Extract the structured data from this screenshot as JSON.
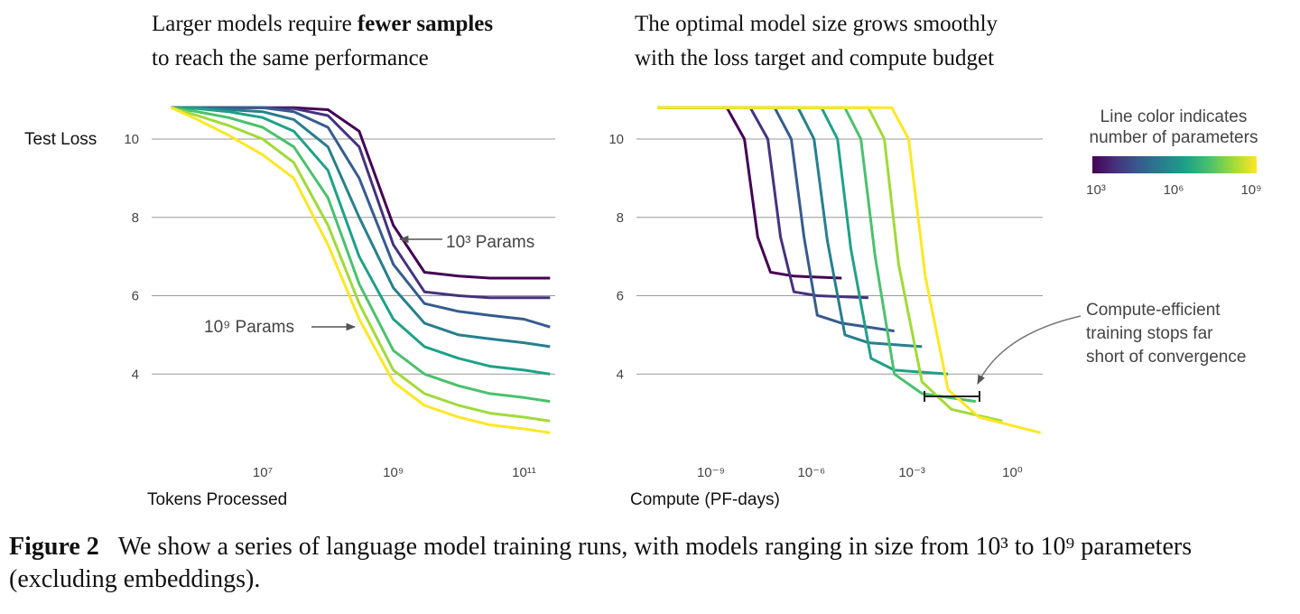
{
  "chart_data": [
    {
      "type": "line",
      "title": {
        "line1": "Larger models require ",
        "bold": "fewer samples",
        "line2": "to reach the same performance"
      },
      "ylabel": "Test Loss",
      "xlabel": "Tokens Processed",
      "xscale": "log",
      "grid": true,
      "xlim": [
        200000,
        300000000000
      ],
      "ylim": [
        2,
        11.2
      ],
      "xticks": [
        {
          "value": 10000000,
          "label": "10⁷"
        },
        {
          "value": 1000000000,
          "label": "10⁹"
        },
        {
          "value": 100000000000,
          "label": "10¹¹"
        }
      ],
      "yticks": [
        10,
        8,
        6,
        4
      ],
      "annotations": [
        "10³ Params",
        "10⁹ Params"
      ],
      "series": [
        {
          "color": "#440154",
          "x": [
            400000,
            1000000,
            3000000,
            10000000,
            30000000,
            100000000,
            300000000,
            1000000000,
            3000000000,
            10000000000,
            30000000000,
            100000000000,
            250000000000
          ],
          "values": [
            10.8,
            10.8,
            10.8,
            10.8,
            10.8,
            10.75,
            10.2,
            7.8,
            6.6,
            6.5,
            6.45,
            6.45,
            6.45
          ]
        },
        {
          "color": "#46327e",
          "x": [
            400000,
            1000000,
            3000000,
            10000000,
            30000000,
            100000000,
            300000000,
            1000000000,
            3000000000,
            10000000000,
            30000000000,
            100000000000,
            250000000000
          ],
          "values": [
            10.8,
            10.8,
            10.8,
            10.8,
            10.78,
            10.6,
            9.8,
            7.3,
            6.1,
            6.0,
            5.95,
            5.95,
            5.95
          ]
        },
        {
          "color": "#365c8d",
          "x": [
            400000,
            1000000,
            3000000,
            10000000,
            30000000,
            100000000,
            300000000,
            1000000000,
            3000000000,
            10000000000,
            30000000000,
            100000000000,
            250000000000
          ],
          "values": [
            10.8,
            10.8,
            10.8,
            10.8,
            10.7,
            10.3,
            9.0,
            6.8,
            5.8,
            5.6,
            5.5,
            5.4,
            5.2
          ]
        },
        {
          "color": "#277f8e",
          "x": [
            400000,
            1000000,
            3000000,
            10000000,
            30000000,
            100000000,
            300000000,
            1000000000,
            3000000000,
            10000000000,
            30000000000,
            100000000000,
            250000000000
          ],
          "values": [
            10.8,
            10.8,
            10.75,
            10.7,
            10.5,
            9.8,
            8.0,
            6.2,
            5.3,
            5.0,
            4.9,
            4.8,
            4.7
          ]
        },
        {
          "color": "#1fa187",
          "x": [
            400000,
            1000000,
            3000000,
            10000000,
            30000000,
            100000000,
            300000000,
            1000000000,
            3000000000,
            10000000000,
            30000000000,
            100000000000,
            250000000000
          ],
          "values": [
            10.8,
            10.78,
            10.7,
            10.55,
            10.2,
            9.2,
            7.0,
            5.4,
            4.7,
            4.4,
            4.2,
            4.1,
            4.0
          ]
        },
        {
          "color": "#4ac16d",
          "x": [
            400000,
            1000000,
            3000000,
            10000000,
            30000000,
            100000000,
            300000000,
            1000000000,
            3000000000,
            10000000000,
            30000000000,
            100000000000,
            250000000000
          ],
          "values": [
            10.8,
            10.7,
            10.55,
            10.3,
            9.8,
            8.5,
            6.3,
            4.6,
            4.0,
            3.7,
            3.5,
            3.4,
            3.3
          ]
        },
        {
          "color": "#a0da39",
          "x": [
            400000,
            1000000,
            3000000,
            10000000,
            30000000,
            100000000,
            300000000,
            1000000000,
            3000000000,
            10000000000,
            30000000000,
            100000000000,
            250000000000
          ],
          "values": [
            10.8,
            10.6,
            10.35,
            10.0,
            9.4,
            7.8,
            5.8,
            4.1,
            3.5,
            3.2,
            3.0,
            2.9,
            2.8
          ]
        },
        {
          "color": "#fde725",
          "x": [
            400000,
            1000000,
            3000000,
            10000000,
            30000000,
            100000000,
            300000000,
            1000000000,
            3000000000,
            10000000000,
            30000000000,
            100000000000,
            250000000000
          ],
          "values": [
            10.8,
            10.5,
            10.1,
            9.6,
            9.0,
            7.3,
            5.4,
            3.8,
            3.2,
            2.9,
            2.7,
            2.6,
            2.5
          ]
        }
      ]
    },
    {
      "type": "line",
      "title": {
        "line1": "The optimal model size grows smoothly",
        "line2": "with the loss target and compute budget"
      },
      "xlabel": "Compute (PF-days)",
      "xscale": "log",
      "grid": true,
      "xlim": [
        6e-12,
        8
      ],
      "ylim": [
        2,
        11.2
      ],
      "xticks": [
        {
          "value": 1e-09,
          "label": "10⁻⁹"
        },
        {
          "value": 1e-06,
          "label": "10⁻⁶"
        },
        {
          "value": 0.001,
          "label": "10⁻³"
        },
        {
          "value": 1,
          "label": "10⁰"
        }
      ],
      "yticks": [
        10,
        8,
        6,
        4
      ],
      "annotations": [
        "Compute-efficient",
        "training stops far",
        "short of convergence"
      ],
      "colorbar": {
        "title": [
          "Line color indicates",
          "number of parameters"
        ],
        "colors": [
          "#440154",
          "#46327e",
          "#365c8d",
          "#277f8e",
          "#1fa187",
          "#4ac16d",
          "#a0da39",
          "#fde725"
        ],
        "lim": [
          1000,
          1000000000
        ],
        "ticks": [
          {
            "value": 1000,
            "label": "10³"
          },
          {
            "value": 1000000,
            "label": "10⁶"
          },
          {
            "value": 1000000000,
            "label": "10⁹"
          }
        ]
      },
      "series": [
        {
          "color": "#440154",
          "x": [
            2.5e-11,
            3e-09,
            1e-08,
            2.5e-08,
            6e-08,
            3e-07,
            8e-06
          ],
          "values": [
            10.8,
            10.8,
            10.0,
            7.5,
            6.6,
            6.5,
            6.45
          ]
        },
        {
          "color": "#46327e",
          "x": [
            2.5e-11,
            1.5e-08,
            5e-08,
            1.2e-07,
            3e-07,
            1.5e-06,
            5e-05
          ],
          "values": [
            10.8,
            10.8,
            10.0,
            7.5,
            6.1,
            6.0,
            5.95
          ]
        },
        {
          "color": "#365c8d",
          "x": [
            2.5e-11,
            8e-08,
            2.5e-07,
            6e-07,
            1.5e-06,
            8e-06,
            0.0003
          ],
          "values": [
            10.8,
            10.8,
            10.0,
            7.5,
            5.5,
            5.3,
            5.1
          ]
        },
        {
          "color": "#277f8e",
          "x": [
            2.5e-11,
            4e-07,
            1.2e-06,
            3e-06,
            1e-05,
            5e-05,
            0.002
          ],
          "values": [
            10.8,
            10.8,
            10.0,
            7.4,
            5.0,
            4.8,
            4.7
          ]
        },
        {
          "color": "#1fa187",
          "x": [
            2.5e-11,
            2e-06,
            6e-06,
            1.5e-05,
            6e-05,
            0.0003,
            0.012
          ],
          "values": [
            10.8,
            10.8,
            10.0,
            7.2,
            4.4,
            4.1,
            4.0
          ]
        },
        {
          "color": "#4ac16d",
          "x": [
            2.5e-11,
            1e-05,
            3e-05,
            8e-05,
            0.0003,
            0.002,
            0.08
          ],
          "values": [
            10.8,
            10.8,
            10.0,
            7.0,
            4.0,
            3.5,
            3.3
          ]
        },
        {
          "color": "#a0da39",
          "x": [
            2.5e-11,
            5e-05,
            0.00015,
            0.0004,
            0.002,
            0.015,
            0.5
          ],
          "values": [
            10.8,
            10.8,
            10.0,
            6.8,
            3.8,
            3.1,
            2.8
          ]
        },
        {
          "color": "#fde725",
          "x": [
            2.5e-11,
            0.00025,
            0.0008,
            0.0025,
            0.012,
            0.1,
            7
          ],
          "values": [
            10.8,
            10.8,
            10.0,
            6.5,
            3.6,
            2.9,
            2.5
          ]
        }
      ]
    }
  ],
  "caption": {
    "label": "Figure 2",
    "text": "We show a series of language model training runs, with models ranging in size from 10³ to 10⁹ parameters (excluding embeddings)."
  }
}
